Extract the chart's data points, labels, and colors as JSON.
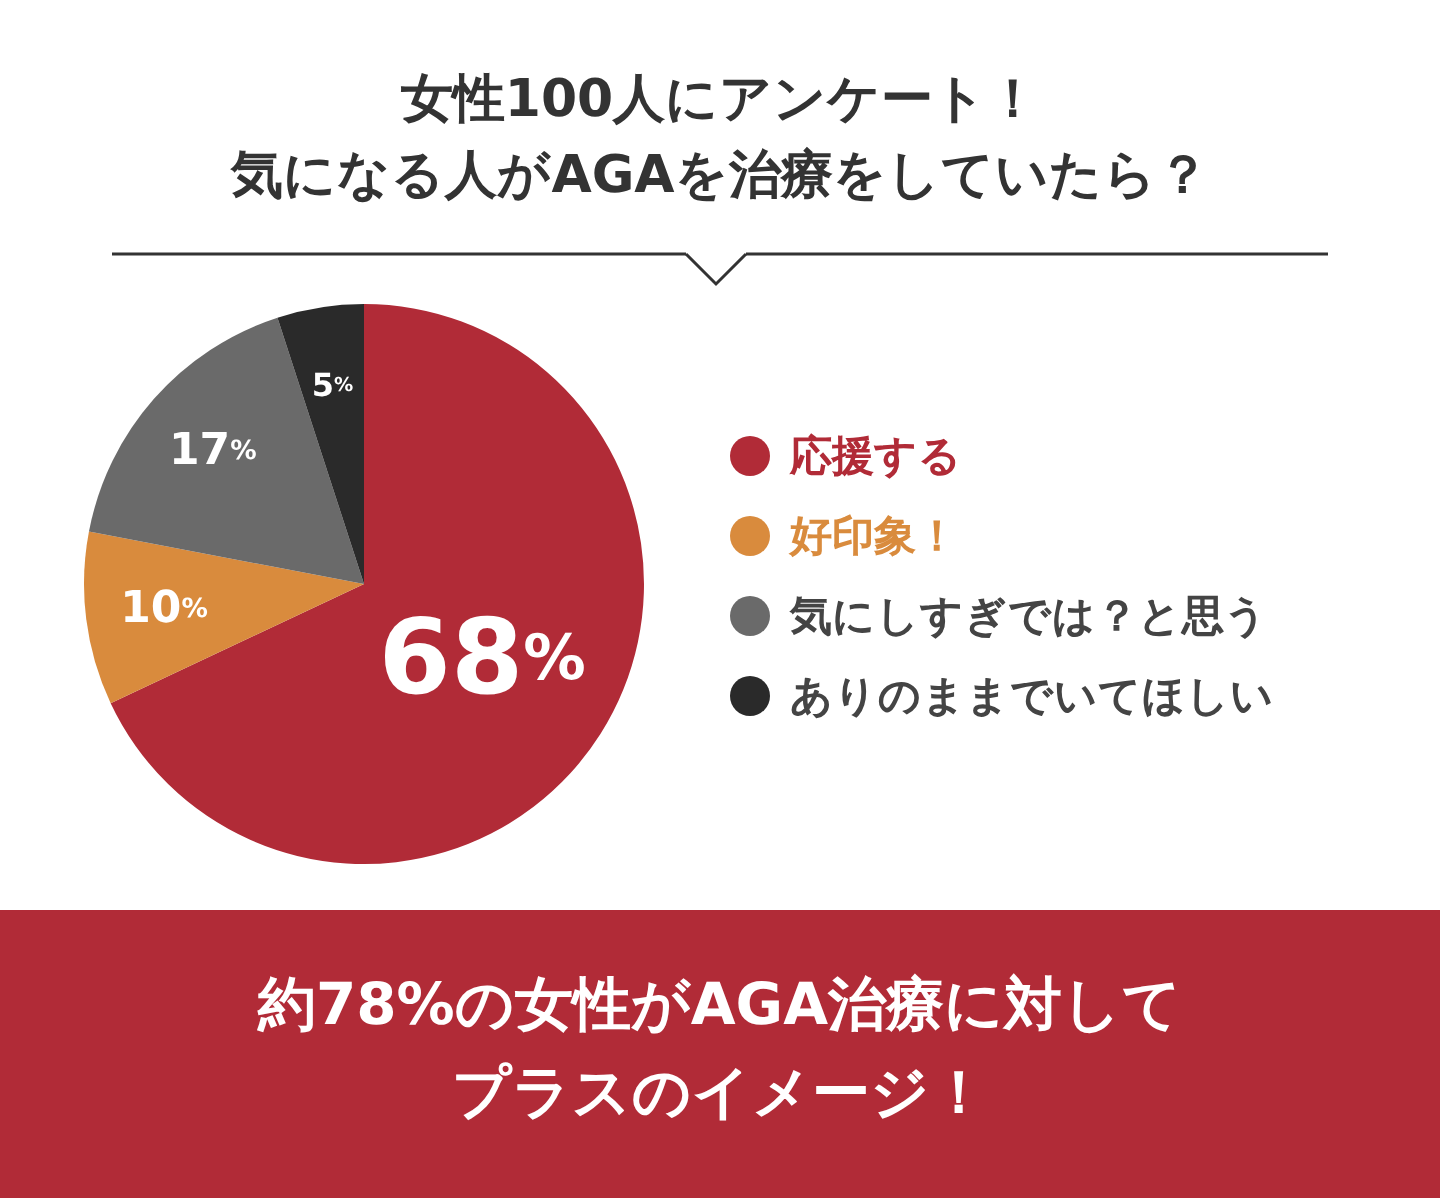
{
  "chart_data": {
    "type": "pie",
    "title": "女性100人にアンケート！",
    "subtitle": "気になる人がAGAを治療をしていたら？",
    "categories": [
      "応援する",
      "好印象！",
      "気にしすぎでは？と思う",
      "ありのままでいてほしい"
    ],
    "values": [
      68,
      10,
      17,
      5
    ],
    "value_labels": [
      "68%",
      "10%",
      "17%",
      "5%"
    ],
    "colors": [
      "#b12b37",
      "#d98b3d",
      "#6a6a6a",
      "#2a2a2a"
    ],
    "legend": "right",
    "annotations": [
      "約78%の女性がAGA治療に対して",
      "プラスのイメージ！"
    ]
  }
}
